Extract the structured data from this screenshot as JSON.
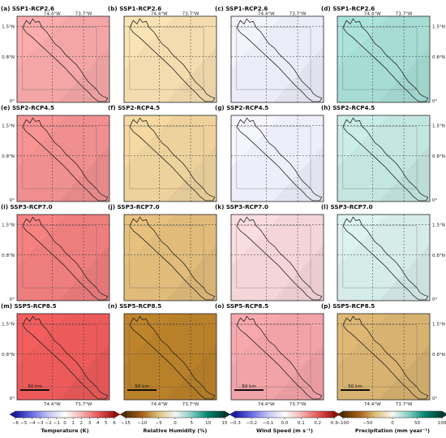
{
  "figure": {
    "lat_labels": [
      "1.5°N",
      "0.8°N",
      "0°"
    ],
    "lon_labels": [
      "74.4°W",
      "73.7°W"
    ],
    "scale_bar_label": "50 km"
  },
  "panels": [
    {
      "label": "(a) SSP1-RCP2.6",
      "variable": "temperature",
      "fill": "#f4a6a6"
    },
    {
      "label": "(b) SSP1-RCP2.6",
      "variable": "humidity",
      "fill": "#f3dcaf"
    },
    {
      "label": "(c) SSP1-RCP2.6",
      "variable": "wind",
      "fill": "#ececf8"
    },
    {
      "label": "(d) SSP1-RCP2.6",
      "variable": "precipitation",
      "fill": "#a6dcd4"
    },
    {
      "label": "(e) SSP2-RCP4.5",
      "variable": "temperature",
      "fill": "#f08f8f"
    },
    {
      "label": "(f) SSP2-RCP4.5",
      "variable": "humidity",
      "fill": "#eed29c"
    },
    {
      "label": "(g) SSP2-RCP4.5",
      "variable": "wind",
      "fill": "#eeeefa"
    },
    {
      "label": "(h) SSP2-RCP4.5",
      "variable": "precipitation",
      "fill": "#c4e6e0"
    },
    {
      "label": "(i) SSP3-RCP7.0",
      "variable": "temperature",
      "fill": "#ee7d7d"
    },
    {
      "label": "(j) SSP3-RCP7.0",
      "variable": "humidity",
      "fill": "#e0bb7a"
    },
    {
      "label": "(k) SSP3-RCP7.0",
      "variable": "wind",
      "fill": "#f4d6d8"
    },
    {
      "label": "(l) SSP3-RCP7.0",
      "variable": "precipitation",
      "fill": "#d6ece8"
    },
    {
      "label": "(m) SSP5-RCP8.5",
      "variable": "temperature",
      "fill": "#ec5a5a"
    },
    {
      "label": "(n) SSP5-RCP8.5",
      "variable": "humidity",
      "fill": "#b9802a"
    },
    {
      "label": "(o) SSP5-RCP8.5",
      "variable": "wind",
      "fill": "#f1a3a8"
    },
    {
      "label": "(p) SSP5-RCP8.5",
      "variable": "precipitation",
      "fill": "#d8b270"
    }
  ],
  "chart_data": [
    {
      "type": "heatmap",
      "title": "Temperature (K)",
      "colorbar_ticks": [
        -6,
        -5,
        -4,
        -3,
        -2,
        -1,
        0,
        1,
        2,
        3,
        4,
        5,
        6
      ],
      "range": [
        -6,
        6
      ],
      "colormap": [
        "#1a1aa6",
        "#6a6ae8",
        "#c4c4f4",
        "#ffffff",
        "#f4b4b4",
        "#e85a5a",
        "#a01010"
      ],
      "panels": [
        "(a) SSP1-RCP2.6",
        "(e) SSP2-RCP4.5",
        "(i) SSP3-RCP7.0",
        "(m) SSP5-RCP8.5"
      ]
    },
    {
      "type": "heatmap",
      "title": "Relative Humidity (%)",
      "colorbar_ticks": [
        -15,
        -10,
        -5,
        0,
        5,
        10,
        15
      ],
      "range": [
        -15,
        15
      ],
      "colormap": [
        "#543005",
        "#a6611a",
        "#dfc27d",
        "#f5f5f5",
        "#80cdc1",
        "#018571",
        "#003c30"
      ],
      "panels": [
        "(b) SSP1-RCP2.6",
        "(f) SSP2-RCP4.5",
        "(j) SSP3-RCP7.0",
        "(n) SSP5-RCP8.5"
      ]
    },
    {
      "type": "heatmap",
      "title": "Wind Speed (m s⁻¹)",
      "colorbar_ticks": [
        -0.3,
        -0.2,
        -0.1,
        0.0,
        0.1,
        0.2,
        0.3
      ],
      "tick_labels": [
        "−0.3",
        "−0.2",
        "−0.1",
        "0.0",
        "0.1",
        "0.2",
        "0.3"
      ],
      "range": [
        -0.3,
        0.3
      ],
      "colormap": [
        "#1a1aa6",
        "#6a6ae8",
        "#c4c4f4",
        "#ffffff",
        "#f4b4b4",
        "#e85a5a",
        "#a01010"
      ],
      "panels": [
        "(c) SSP1-RCP2.6",
        "(g) SSP2-RCP4.5",
        "(k) SSP3-RCP7.0",
        "(o) SSP5-RCP8.5"
      ]
    },
    {
      "type": "heatmap",
      "title": "Precipitation (mm year⁻¹)",
      "colorbar_ticks": [
        -100,
        -50,
        0,
        50,
        100
      ],
      "tick_labels": [
        "−100",
        "−50",
        "0",
        "50",
        "100"
      ],
      "range": [
        -100,
        100
      ],
      "colormap": [
        "#543005",
        "#a6611a",
        "#dfc27d",
        "#f5f5f5",
        "#80cdc1",
        "#018571",
        "#003c30"
      ],
      "panels": [
        "(d) SSP1-RCP2.6",
        "(h) SSP2-RCP4.5",
        "(l) SSP3-RCP7.0",
        "(p) SSP5-RCP8.5"
      ]
    }
  ]
}
